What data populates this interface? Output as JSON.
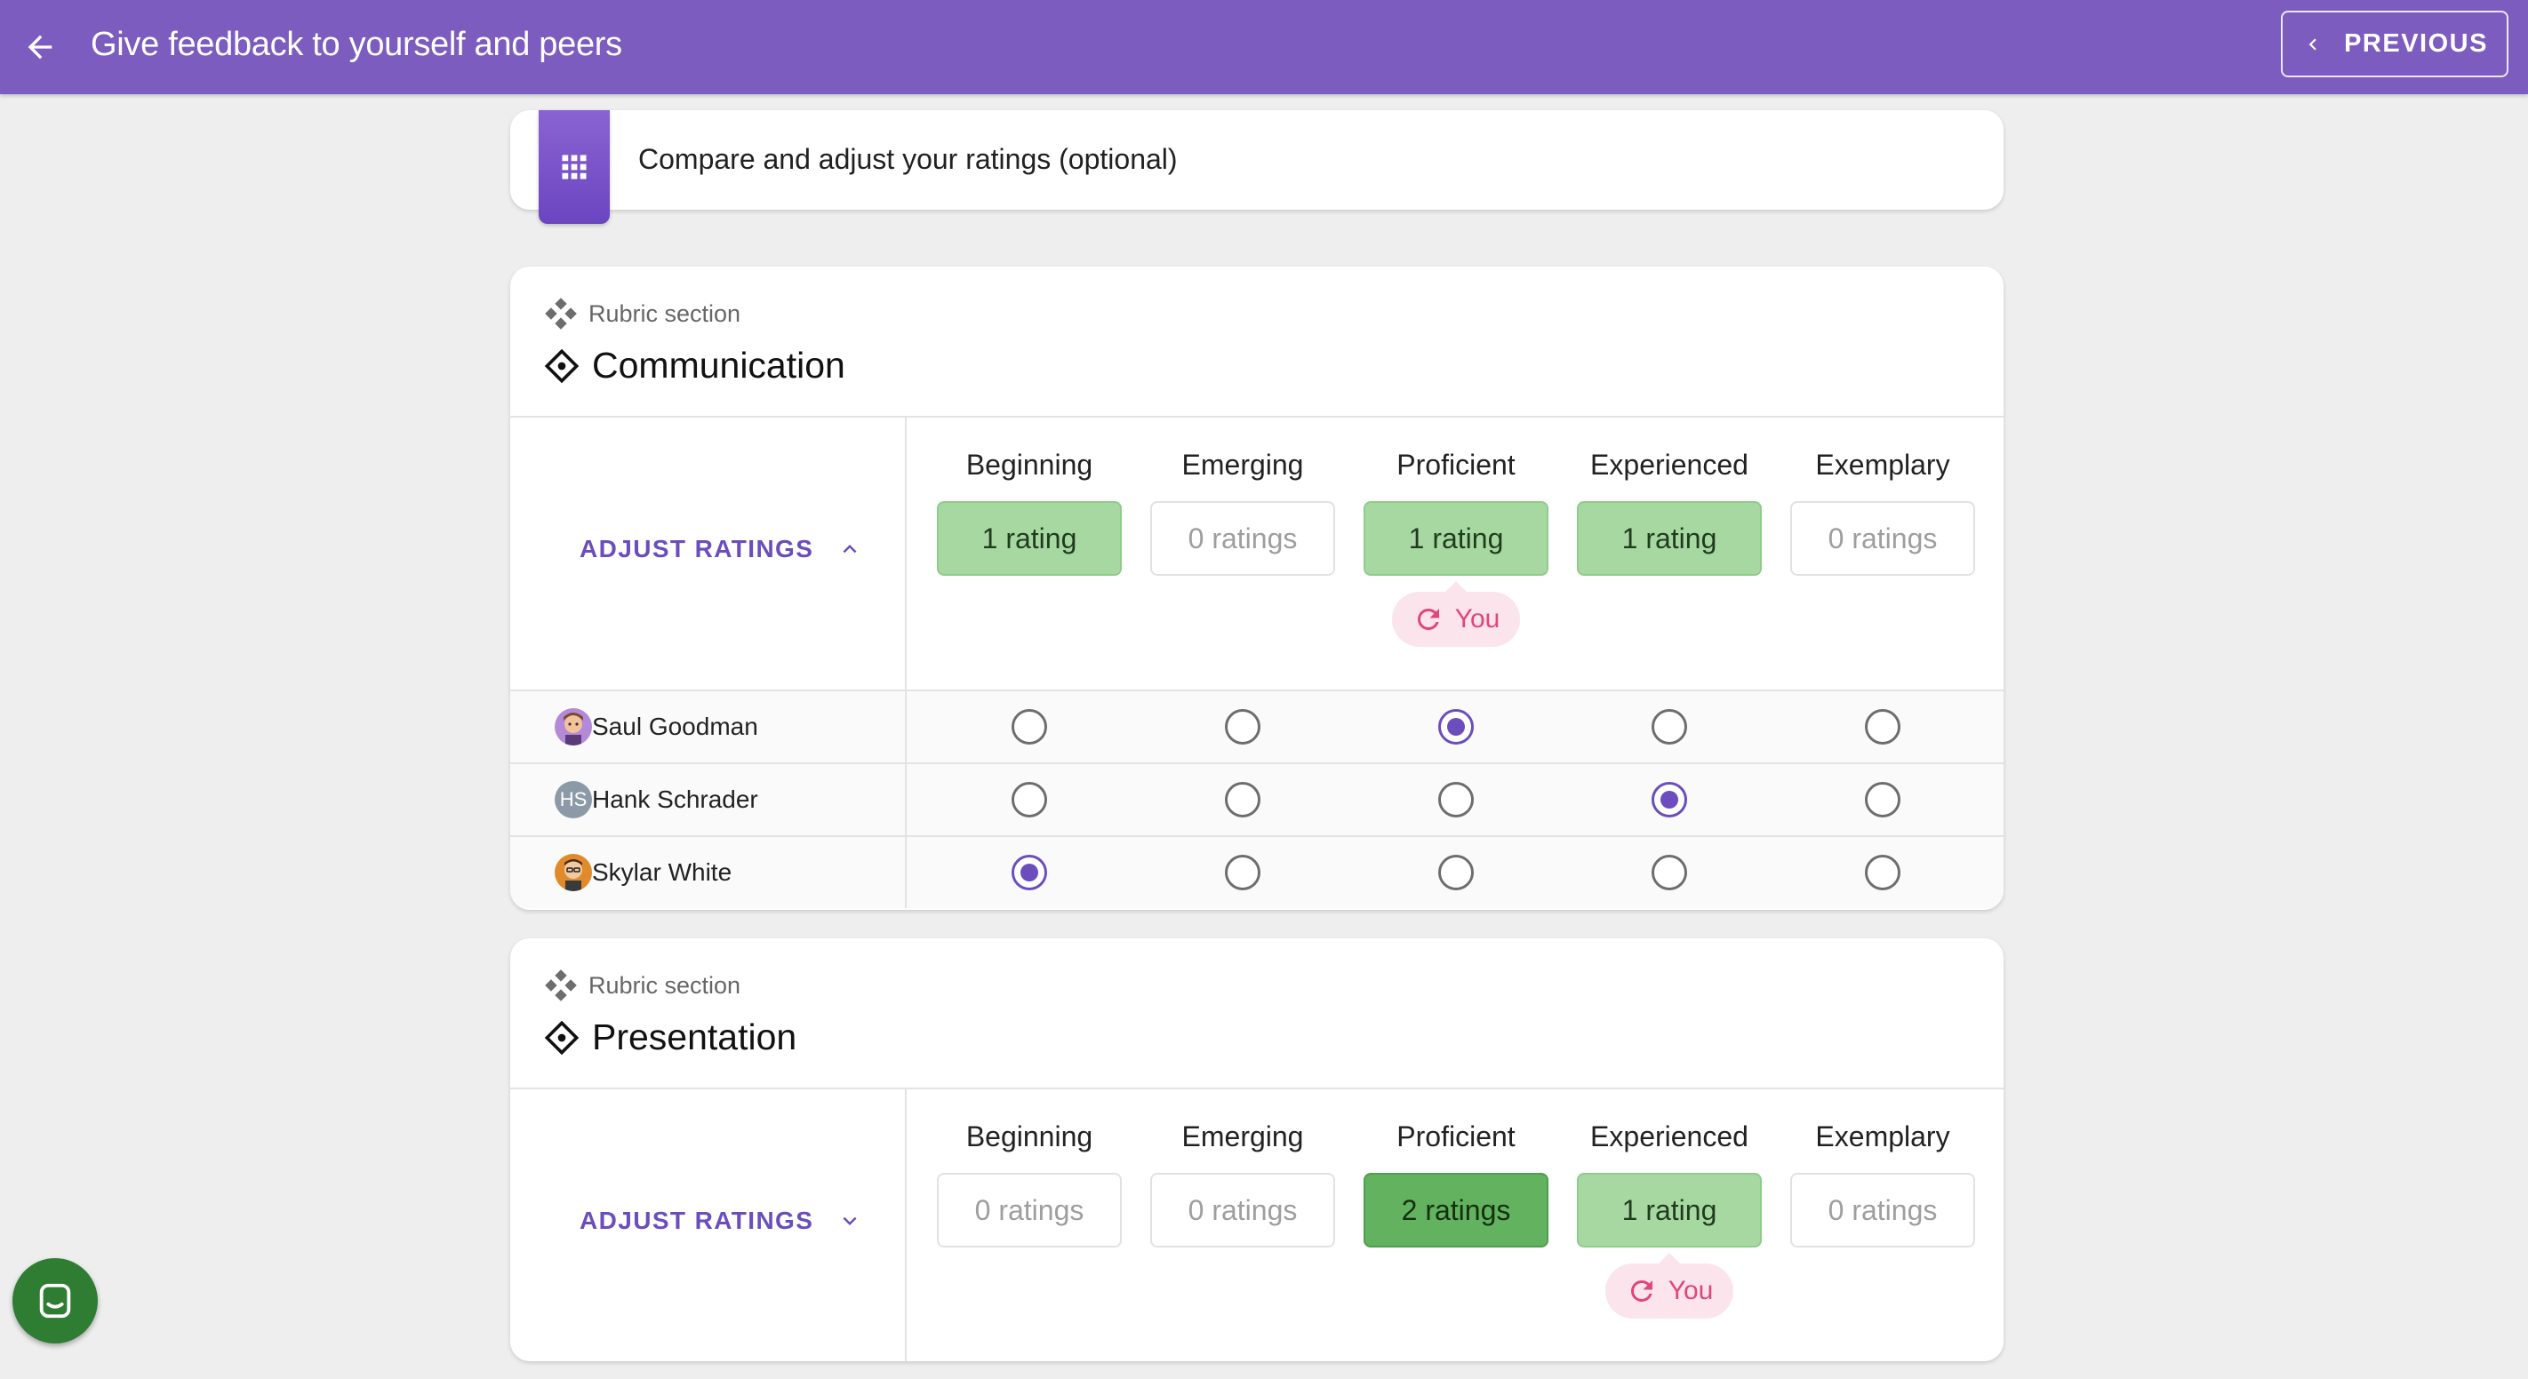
{
  "header": {
    "title": "Give feedback to yourself and peers",
    "previous_label": "PREVIOUS",
    "background": "#7c5cbf"
  },
  "step": {
    "text": "Compare and adjust your ratings (optional)"
  },
  "levels": [
    "Beginning",
    "Emerging",
    "Proficient",
    "Experienced",
    "Exemplary"
  ],
  "sections": [
    {
      "subtitle": "Rubric section",
      "title": "Communication",
      "adjust_label": "ADJUST RATINGS",
      "expanded": true,
      "ratings": [
        "1 rating",
        "0 ratings",
        "1 rating",
        "1 rating",
        "0 ratings"
      ],
      "you_label": "You",
      "you_level": "Proficient",
      "students": [
        {
          "name": "Saul Goodman",
          "avatar": "cartoon-avatar",
          "selected": "Proficient"
        },
        {
          "name": "Hank Schrader",
          "avatar": "HS",
          "selected": "Experienced"
        },
        {
          "name": "Skylar White",
          "avatar": "cartoon-avatar",
          "selected": "Beginning"
        }
      ]
    },
    {
      "subtitle": "Rubric section",
      "title": "Presentation",
      "adjust_label": "ADJUST RATINGS",
      "expanded": false,
      "ratings": [
        "0 ratings",
        "0 ratings",
        "2 ratings",
        "1 rating",
        "0 ratings"
      ],
      "you_label": "You",
      "you_level": "Experienced",
      "students": []
    }
  ],
  "colors": {
    "accent": "#6b4dbd",
    "rating_light": "#a8d8a2",
    "rating_dark": "#62b25f",
    "you_badge": "#e0457b",
    "chat_button": "#2e7d32"
  }
}
